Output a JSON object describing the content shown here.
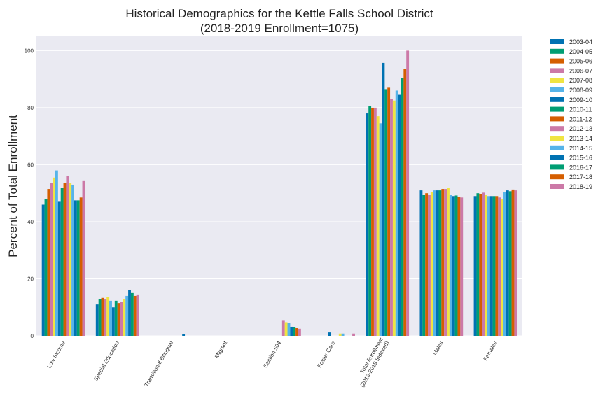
{
  "chart_data": {
    "type": "bar",
    "title": [
      "Historical Demographics for the Kettle Falls School District",
      "(2018-2019 Enrollment=1075)"
    ],
    "xlabel": "",
    "ylabel": "Percent of Total Enrollment",
    "ylim": [
      0,
      105
    ],
    "yticks": [
      0,
      20,
      40,
      60,
      80,
      100
    ],
    "grid": true,
    "legend_position": "outside-top-right",
    "categories": [
      [
        "Low Income"
      ],
      [
        "Special Education"
      ],
      [
        "Transitional Bilingual"
      ],
      [
        "Migrant"
      ],
      [
        "Section 504"
      ],
      [
        "Foster Care"
      ],
      [
        "Total Enrollment",
        "(2018-2019 Indexed)"
      ],
      [
        "Males"
      ],
      [
        "Females"
      ]
    ],
    "series": [
      {
        "name": "2003-04",
        "color": "#0072b2",
        "values": [
          46.0,
          11.0,
          0,
          0,
          0,
          0,
          78.0,
          51.0,
          49.0
        ]
      },
      {
        "name": "2004-05",
        "color": "#009e73",
        "values": [
          48.0,
          13.0,
          0,
          0,
          0,
          0,
          80.5,
          49.5,
          50.0
        ]
      },
      {
        "name": "2005-06",
        "color": "#d55e00",
        "values": [
          51.5,
          13.3,
          0,
          0,
          0,
          0,
          80.0,
          50.0,
          49.8
        ]
      },
      {
        "name": "2006-07",
        "color": "#cc79a7",
        "values": [
          53.5,
          13.0,
          0,
          0,
          0,
          0,
          80.0,
          49.5,
          50.2
        ]
      },
      {
        "name": "2007-08",
        "color": "#f0e442",
        "values": [
          55.5,
          13.5,
          0,
          0,
          0,
          0,
          77.0,
          50.5,
          49.5
        ]
      },
      {
        "name": "2008-09",
        "color": "#56b4e9",
        "values": [
          58.0,
          12.3,
          0,
          0,
          0,
          0,
          74.5,
          51.0,
          49.0
        ]
      },
      {
        "name": "2009-10",
        "color": "#0072b2",
        "values": [
          47.0,
          10.0,
          0,
          0,
          0,
          1.2,
          95.7,
          51.0,
          49.0
        ]
      },
      {
        "name": "2010-11",
        "color": "#009e73",
        "values": [
          52.0,
          12.3,
          0,
          0,
          0,
          0,
          86.5,
          51.0,
          49.0
        ]
      },
      {
        "name": "2011-12",
        "color": "#d55e00",
        "values": [
          53.5,
          11.5,
          0,
          0,
          0,
          0,
          87.0,
          51.5,
          49.0
        ]
      },
      {
        "name": "2012-13",
        "color": "#cc79a7",
        "values": [
          56.0,
          11.8,
          0,
          0,
          5.3,
          0,
          83.0,
          51.5,
          48.5
        ]
      },
      {
        "name": "2013-14",
        "color": "#f0e442",
        "values": [
          53.5,
          13.0,
          0,
          0,
          4.8,
          0.8,
          82.5,
          52.0,
          48.0
        ]
      },
      {
        "name": "2014-15",
        "color": "#56b4e9",
        "values": [
          53.0,
          14.0,
          0,
          0,
          4.5,
          0.8,
          86.0,
          49.5,
          50.5
        ]
      },
      {
        "name": "2015-16",
        "color": "#0072b2",
        "values": [
          47.5,
          16.0,
          0.5,
          0,
          3.2,
          0,
          84.5,
          49.0,
          51.0
        ]
      },
      {
        "name": "2016-17",
        "color": "#009e73",
        "values": [
          47.5,
          15.0,
          0,
          0,
          3.0,
          0,
          90.5,
          49.2,
          50.7
        ]
      },
      {
        "name": "2017-18",
        "color": "#d55e00",
        "values": [
          48.5,
          14.0,
          0,
          0,
          2.7,
          0,
          93.5,
          48.8,
          51.3
        ]
      },
      {
        "name": "2018-19",
        "color": "#cc79a7",
        "values": [
          54.5,
          14.5,
          0,
          0,
          2.5,
          0.8,
          100.0,
          48.5,
          51.0
        ]
      }
    ]
  }
}
